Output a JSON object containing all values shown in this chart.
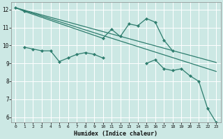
{
  "xlabel": "Humidex (Indice chaleur)",
  "bg_color": "#cce8e4",
  "grid_color": "#ffffff",
  "line_color": "#2e7d6e",
  "xlim": [
    -0.5,
    23.5
  ],
  "ylim": [
    5.7,
    12.4
  ],
  "yticks": [
    6,
    7,
    8,
    9,
    10,
    11,
    12
  ],
  "xticks": [
    0,
    1,
    2,
    3,
    4,
    5,
    6,
    7,
    8,
    9,
    10,
    11,
    12,
    13,
    14,
    15,
    16,
    17,
    18,
    19,
    20,
    21,
    22,
    23
  ],
  "line1_x": [
    0,
    1,
    10,
    11,
    12,
    13,
    14,
    15,
    16,
    17,
    18
  ],
  "line1_y": [
    12.1,
    11.9,
    10.4,
    10.9,
    10.5,
    11.2,
    11.1,
    11.5,
    11.3,
    10.3,
    9.7
  ],
  "line2_x": [
    1,
    2,
    3,
    4,
    5,
    6,
    7,
    8,
    9,
    10,
    15,
    16,
    17,
    18,
    19,
    20,
    21,
    22,
    23
  ],
  "line2_y": [
    9.9,
    9.8,
    9.7,
    9.7,
    9.1,
    9.3,
    9.5,
    9.6,
    9.5,
    9.3,
    9.0,
    9.2,
    8.7,
    8.6,
    8.7,
    8.3,
    8.0,
    6.5,
    5.7
  ],
  "line3_x": [
    0,
    23
  ],
  "line3_y": [
    12.1,
    8.55
  ],
  "line4_x": [
    0,
    23
  ],
  "line4_y": [
    12.1,
    9.05
  ]
}
